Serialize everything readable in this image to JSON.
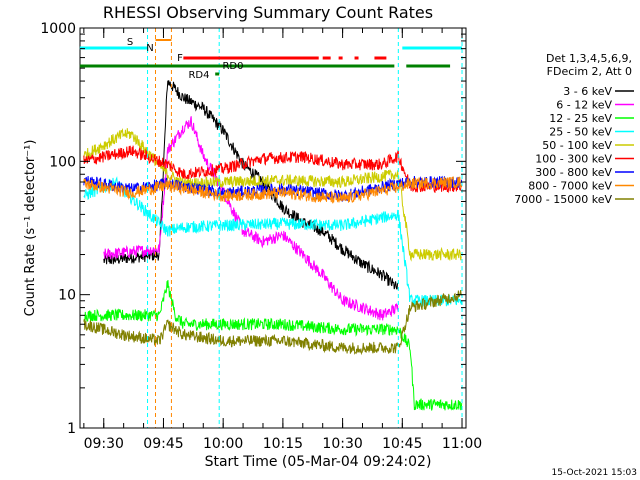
{
  "chart_data": {
    "type": "line",
    "title": "RHESSI Observing Summary Count Rates",
    "xlabel": "Start Time (05-Mar-04 09:24:02)",
    "ylabel": "Count Rate (s⁻¹ detector⁻¹)",
    "yscale": "log",
    "ylim": [
      1,
      1000
    ],
    "xlim": [
      "09:24:02",
      "11:01:00"
    ],
    "x_ticks": [
      "09:30",
      "09:45",
      "10:00",
      "10:15",
      "10:30",
      "10:45",
      "11:00"
    ],
    "y_ticks": [
      "1",
      "10",
      "100",
      "1000"
    ],
    "grid": false,
    "legend_position": "right",
    "legend_header": [
      "Det 1,3,4,5,6,9,",
      "FDecim 2, Att 0"
    ],
    "series": [
      {
        "name": "3 - 6 keV",
        "color": "#000000",
        "points": [
          [
            "09:30",
            18
          ],
          [
            "09:44",
            20
          ],
          [
            "09:46",
            400
          ],
          [
            "09:50",
            300
          ],
          [
            "09:55",
            250
          ],
          [
            "10:00",
            170
          ],
          [
            "10:05",
            95
          ],
          [
            "10:10",
            70
          ],
          [
            "10:15",
            45
          ],
          [
            "10:20",
            35
          ],
          [
            "10:25",
            30
          ],
          [
            "10:30",
            22
          ],
          [
            "10:35",
            17
          ],
          [
            "10:40",
            14
          ],
          [
            "10:44",
            11
          ]
        ]
      },
      {
        "name": "6 - 12 keV",
        "color": "#ff00ff",
        "points": [
          [
            "09:30",
            20
          ],
          [
            "09:44",
            22
          ],
          [
            "09:46",
            120
          ],
          [
            "09:50",
            180
          ],
          [
            "09:52",
            200
          ],
          [
            "09:55",
            110
          ],
          [
            "10:00",
            60
          ],
          [
            "10:05",
            30
          ],
          [
            "10:10",
            25
          ],
          [
            "10:15",
            28
          ],
          [
            "10:20",
            20
          ],
          [
            "10:25",
            14
          ],
          [
            "10:30",
            9
          ],
          [
            "10:35",
            8
          ],
          [
            "10:40",
            7
          ],
          [
            "10:44",
            8
          ]
        ]
      },
      {
        "name": "12 - 25 keV",
        "color": "#00ff00",
        "points": [
          [
            "09:25",
            7
          ],
          [
            "09:44",
            7
          ],
          [
            "09:46",
            12
          ],
          [
            "09:48",
            7
          ],
          [
            "09:50",
            6
          ],
          [
            "10:00",
            6
          ],
          [
            "10:15",
            6
          ],
          [
            "10:30",
            5.5
          ],
          [
            "10:44",
            5.5
          ],
          [
            "10:47",
            4
          ],
          [
            "10:48",
            1.5
          ],
          [
            "11:00",
            1.5
          ]
        ]
      },
      {
        "name": "25 - 50 keV",
        "color": "#00ffff",
        "points": [
          [
            "09:25",
            55
          ],
          [
            "09:33",
            70
          ],
          [
            "09:35",
            60
          ],
          [
            "09:46",
            30
          ],
          [
            "09:50",
            32
          ],
          [
            "10:00",
            33
          ],
          [
            "10:15",
            34
          ],
          [
            "10:30",
            33
          ],
          [
            "10:44",
            40
          ],
          [
            "10:47",
            9
          ],
          [
            "11:00",
            9
          ]
        ]
      },
      {
        "name": "50 - 100 keV",
        "color": "#cccc00",
        "points": [
          [
            "09:25",
            110
          ],
          [
            "09:35",
            160
          ],
          [
            "09:37",
            160
          ],
          [
            "09:46",
            80
          ],
          [
            "09:50",
            68
          ],
          [
            "10:00",
            70
          ],
          [
            "10:15",
            72
          ],
          [
            "10:30",
            70
          ],
          [
            "10:44",
            80
          ],
          [
            "10:47",
            20
          ],
          [
            "11:00",
            20
          ]
        ]
      },
      {
        "name": "100 - 300 keV",
        "color": "#ff0000",
        "points": [
          [
            "09:25",
            100
          ],
          [
            "09:37",
            120
          ],
          [
            "09:46",
            95
          ],
          [
            "09:50",
            80
          ],
          [
            "10:00",
            88
          ],
          [
            "10:10",
            105
          ],
          [
            "10:20",
            108
          ],
          [
            "10:30",
            95
          ],
          [
            "10:40",
            95
          ],
          [
            "10:44",
            110
          ],
          [
            "10:47",
            65
          ],
          [
            "11:00",
            65
          ]
        ]
      },
      {
        "name": "300 - 800 keV",
        "color": "#0000ff",
        "points": [
          [
            "09:25",
            72
          ],
          [
            "09:37",
            62
          ],
          [
            "09:46",
            68
          ],
          [
            "10:00",
            58
          ],
          [
            "10:15",
            62
          ],
          [
            "10:30",
            55
          ],
          [
            "10:44",
            68
          ],
          [
            "10:47",
            70
          ],
          [
            "11:00",
            70
          ]
        ]
      },
      {
        "name": "800 - 7000 keV",
        "color": "#ff8800",
        "points": [
          [
            "09:25",
            68
          ],
          [
            "09:37",
            58
          ],
          [
            "09:46",
            66
          ],
          [
            "10:00",
            55
          ],
          [
            "10:15",
            58
          ],
          [
            "10:30",
            52
          ],
          [
            "10:44",
            64
          ],
          [
            "10:47",
            68
          ],
          [
            "11:00",
            70
          ]
        ]
      },
      {
        "name": "7000 - 15000 keV",
        "color": "#808000",
        "points": [
          [
            "09:25",
            6
          ],
          [
            "09:35",
            5
          ],
          [
            "09:44",
            4.5
          ],
          [
            "09:46",
            6
          ],
          [
            "09:50",
            5
          ],
          [
            "10:00",
            4.5
          ],
          [
            "10:15",
            4.5
          ],
          [
            "10:30",
            4
          ],
          [
            "10:44",
            4
          ],
          [
            "10:47",
            8
          ],
          [
            "11:00",
            10
          ]
        ]
      }
    ],
    "flags": [
      {
        "label": "S",
        "color": "#ff8800",
        "start": "09:43",
        "end": "09:47"
      },
      {
        "label": "N",
        "color": "#00ffff",
        "start": "09:24",
        "end": "09:41"
      },
      {
        "label": "N",
        "color": "#00ffff",
        "start": "10:45",
        "end": "11:00"
      },
      {
        "label": "F",
        "color": "#ff0000",
        "start": "09:50",
        "end": "10:24"
      },
      {
        "label": "F",
        "color": "#ff0000",
        "start": "10:25",
        "end": "10:27"
      },
      {
        "label": "F",
        "color": "#ff0000",
        "start": "10:29",
        "end": "10:30"
      },
      {
        "label": "F",
        "color": "#ff0000",
        "start": "10:33",
        "end": "10:34"
      },
      {
        "label": "F",
        "color": "#ff0000",
        "start": "10:38",
        "end": "10:41"
      },
      {
        "label": "RD0",
        "color": "#008000",
        "start": "09:24",
        "end": "10:43"
      },
      {
        "label": "RD0",
        "color": "#008000",
        "start": "10:46",
        "end": "10:57"
      },
      {
        "label": "RD4",
        "color": "#008000",
        "start": "09:58",
        "end": "09:59"
      }
    ],
    "flag_labels": [
      "S",
      "N",
      "F",
      "RD0",
      "RD4"
    ],
    "boundaries": [
      {
        "time": "09:41",
        "color": "#00ffff"
      },
      {
        "time": "09:43",
        "color": "#ff8800"
      },
      {
        "time": "09:47",
        "color": "#ff8800"
      },
      {
        "time": "09:59",
        "color": "#00ffff"
      },
      {
        "time": "10:44",
        "color": "#00ffff"
      },
      {
        "time": "11:00",
        "color": "#00ffff"
      }
    ]
  },
  "footer_timestamp": "15-Oct-2021 15:03"
}
